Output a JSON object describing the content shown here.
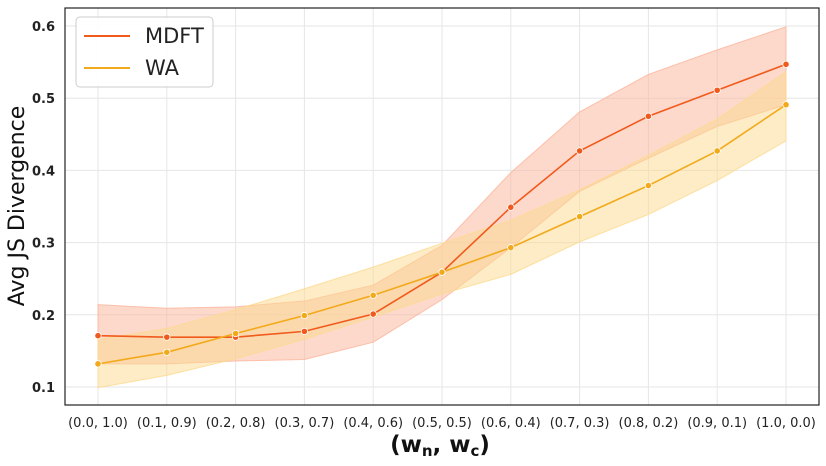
{
  "chart_data": {
    "type": "line",
    "title": "",
    "xlabel": "(w_n, w_c)",
    "xlabel_main": "(w",
    "xlabel_sub_n": "n",
    "xlabel_sep": ", w",
    "xlabel_sub_c": "c",
    "xlabel_close": ")",
    "ylabel": "Avg JS Divergence",
    "ylim": [
      0.075,
      0.625
    ],
    "yticks": [
      "0.1",
      "0.2",
      "0.3",
      "0.4",
      "0.5",
      "0.6"
    ],
    "ytick_values": [
      0.1,
      0.2,
      0.3,
      0.4,
      0.5,
      0.6
    ],
    "categories": [
      "(0.0, 1.0)",
      "(0.1, 0.9)",
      "(0.2, 0.8)",
      "(0.3, 0.7)",
      "(0.4, 0.6)",
      "(0.5, 0.5)",
      "(0.6, 0.4)",
      "(0.7, 0.3)",
      "(0.8, 0.2)",
      "(0.9, 0.1)",
      "(1.0, 0.0)"
    ],
    "grid": true,
    "legend_position": "top-left",
    "series": [
      {
        "name": "MDFT",
        "color": "#f05a1c",
        "band_color": "#fbb49a",
        "values": [
          0.171,
          0.169,
          0.169,
          0.177,
          0.201,
          0.259,
          0.349,
          0.427,
          0.475,
          0.511,
          0.547
        ],
        "lower": [
          0.132,
          0.132,
          0.136,
          0.138,
          0.162,
          0.221,
          0.293,
          0.371,
          0.417,
          0.461,
          0.491
        ],
        "upper": [
          0.214,
          0.209,
          0.211,
          0.219,
          0.241,
          0.296,
          0.397,
          0.481,
          0.533,
          0.567,
          0.599
        ]
      },
      {
        "name": "WA",
        "color": "#f2a91a",
        "band_color": "#fcd98e",
        "values": [
          0.132,
          0.148,
          0.174,
          0.199,
          0.227,
          0.259,
          0.293,
          0.336,
          0.379,
          0.427,
          0.491
        ],
        "lower": [
          0.099,
          0.116,
          0.139,
          0.166,
          0.197,
          0.229,
          0.256,
          0.301,
          0.339,
          0.386,
          0.441
        ],
        "upper": [
          0.166,
          0.181,
          0.207,
          0.236,
          0.266,
          0.299,
          0.331,
          0.373,
          0.421,
          0.471,
          0.537
        ]
      }
    ]
  }
}
